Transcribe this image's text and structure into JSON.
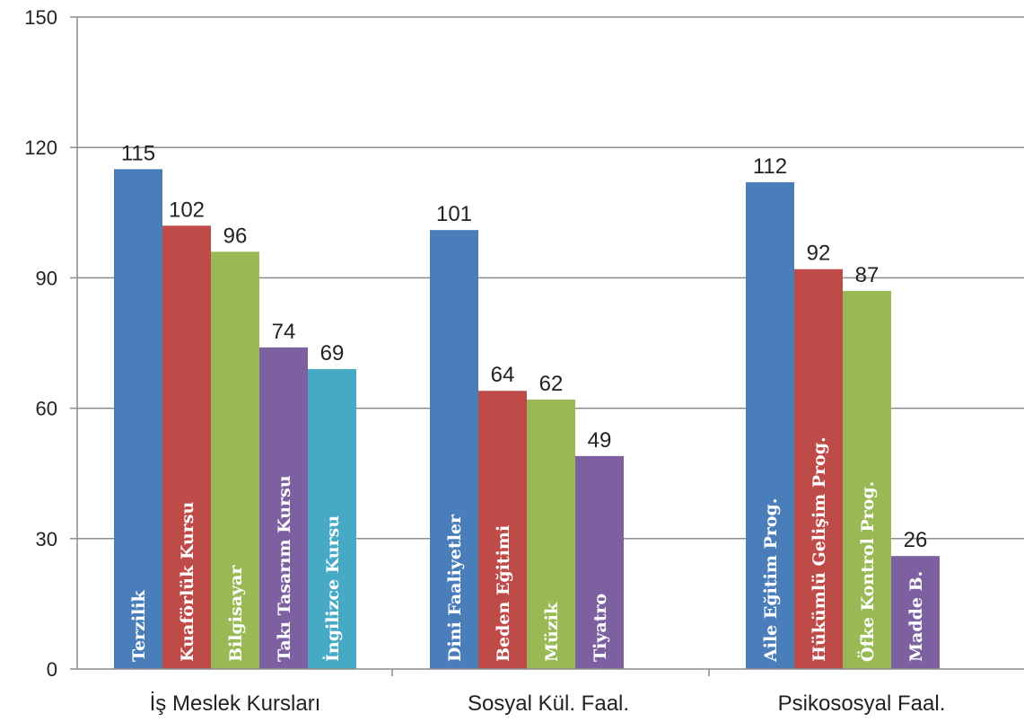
{
  "chart_data": {
    "type": "bar",
    "title": "",
    "xlabel": "",
    "ylabel": "",
    "ylim": [
      0,
      150
    ],
    "yticks": [
      0,
      30,
      60,
      90,
      120,
      150
    ],
    "grid": true,
    "legend": "none (labels printed inside bars)",
    "groups": [
      {
        "category": "İş Meslek Kursları",
        "bars": [
          {
            "label": "Terzilik",
            "value": 115,
            "color": "#4a7ebb"
          },
          {
            "label": "Kuaförlük Kursu",
            "value": 102,
            "color": "#be4b48"
          },
          {
            "label": "Bilgisayar",
            "value": 96,
            "color": "#98b954"
          },
          {
            "label": "Takı Tasarım Kursu",
            "value": 74,
            "color": "#7d60a0"
          },
          {
            "label": "İngilizce Kursu",
            "value": 69,
            "color": "#46aac5"
          }
        ]
      },
      {
        "category": "Sosyal Kül. Faal.",
        "bars": [
          {
            "label": "Dini Faaliyetler",
            "value": 101,
            "color": "#4a7ebb"
          },
          {
            "label": "Beden Eğitimi",
            "value": 64,
            "color": "#be4b48"
          },
          {
            "label": "Müzik",
            "value": 62,
            "color": "#98b954"
          },
          {
            "label": "Tiyatro",
            "value": 49,
            "color": "#7d60a0"
          }
        ]
      },
      {
        "category": "Psikososyal Faal.",
        "bars": [
          {
            "label": "Aile Eğitim Prog.",
            "value": 112,
            "color": "#4a7ebb"
          },
          {
            "label": "Hükümlü Gelişim Prog.",
            "value": 92,
            "color": "#be4b48"
          },
          {
            "label": "Öfke Kontrol Prog.",
            "value": 87,
            "color": "#98b954"
          },
          {
            "label": "Madde B.",
            "value": 26,
            "color": "#7d60a0"
          }
        ]
      }
    ]
  }
}
